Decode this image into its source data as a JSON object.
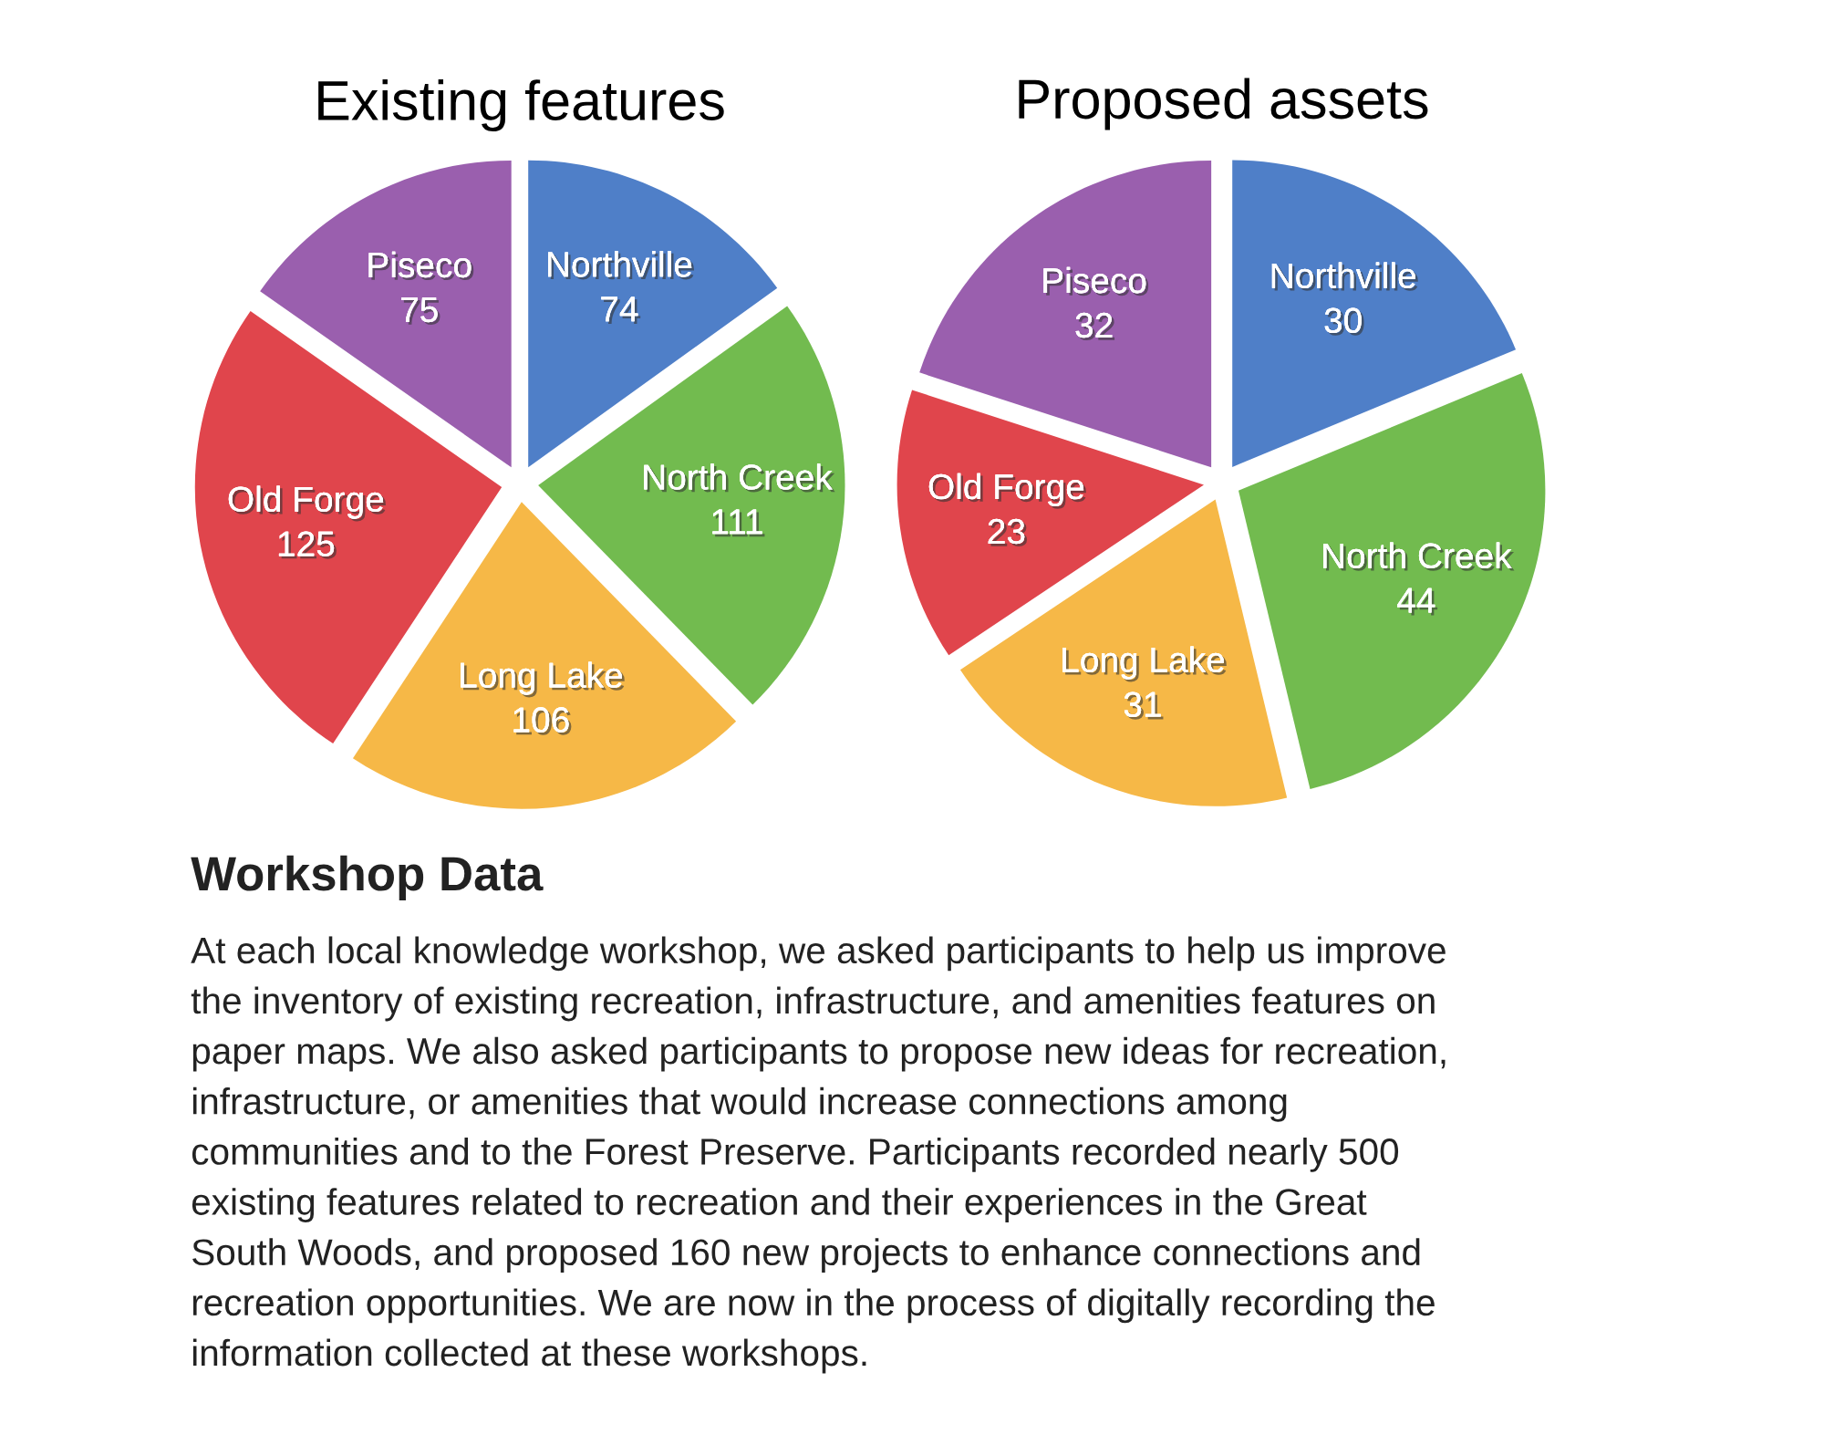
{
  "chart_data": [
    {
      "type": "pie",
      "title": "Existing features",
      "categories": [
        "Northville",
        "North Creek",
        "Long Lake",
        "Old Forge",
        "Piseco"
      ],
      "values": [
        74,
        111,
        106,
        125,
        75
      ],
      "colors": [
        "#4f7fc8",
        "#72bb4f",
        "#f6b847",
        "#e0454c",
        "#9a5fae"
      ],
      "data_labels": true
    },
    {
      "type": "pie",
      "title": "Proposed assets",
      "categories": [
        "Northville",
        "North Creek",
        "Long Lake",
        "Old Forge",
        "Piseco"
      ],
      "values": [
        30,
        44,
        31,
        23,
        32
      ],
      "colors": [
        "#4f7fc8",
        "#72bb4f",
        "#f6b847",
        "#e0454c",
        "#9a5fae"
      ],
      "data_labels": true
    },
    {
      "type": "other",
      "title": "Workshop Data",
      "annotations": [
        "At each local knowledge workshop, we asked participants to help us improve\nthe inventory of existing recreation, infrastructure, and amenities features on\npaper maps. We also asked participants to propose new ideas for recreation,\ninfrastructure, or amenities that would increase connections among\ncommunities and to the Forest Preserve. Participants recorded nearly 500\nexisting features related to recreation and their experiences in the Great\nSouth Woods, and proposed 160 new projects to enhance connections and\nrecreation opportunities. We are now in the process of digitally recording the\ninformation collected at these workshops."
      ]
    }
  ]
}
